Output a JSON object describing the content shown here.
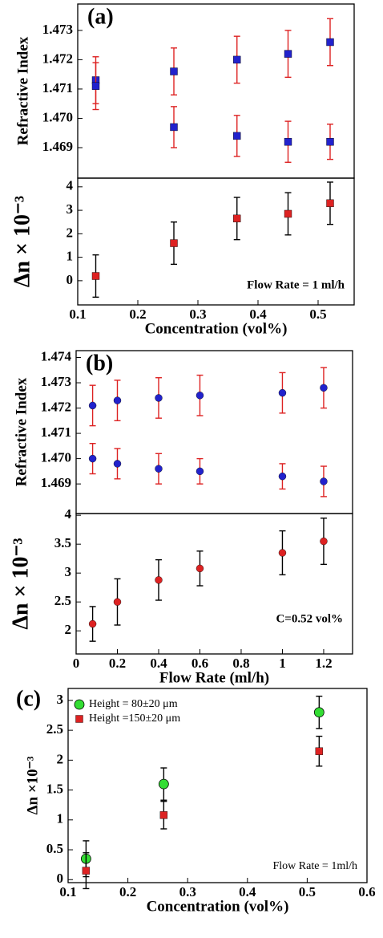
{
  "chart_data": [
    {
      "type": "scatter",
      "panel_label": "(a)",
      "y_label": "Refractive Index",
      "xlim": [
        0.1,
        0.56
      ],
      "ylim": [
        1.46796,
        1.4739
      ],
      "yticks": [
        1.469,
        {
          "value": 1.47,
          "label": "1.470"
        },
        1.471,
        1.472,
        1.473
      ],
      "series": [
        {
          "marker": "square",
          "color": "#2222cc",
          "error_color": "#dd2222",
          "x": [
            0.13,
            0.26,
            0.365,
            0.45,
            0.52
          ],
          "values": [
            1.4713,
            1.4716,
            1.472,
            1.4722,
            1.4726
          ],
          "errors": [
            0.0008,
            0.0008,
            0.0008,
            0.0008,
            0.0008
          ]
        },
        {
          "marker": "square",
          "color": "#2222cc",
          "error_color": "#dd2222",
          "x": [
            0.13,
            0.26,
            0.365,
            0.45,
            0.52
          ],
          "values": [
            1.4711,
            1.4697,
            1.4694,
            1.4692,
            1.4692
          ],
          "errors": [
            0.0008,
            0.0007,
            0.0007,
            0.0007,
            0.0006
          ]
        }
      ]
    },
    {
      "type": "scatter",
      "y_label": "Δn × 10⁻³",
      "x_label": "Concentration (vol%)",
      "annotation": "Flow Rate = 1 ml/h",
      "xlim": [
        0.1,
        0.56
      ],
      "ylim": [
        -1.03,
        4.37
      ],
      "xticks": [
        0.1,
        0.2,
        0.3,
        0.4,
        0.5
      ],
      "yticks": [
        0,
        1,
        2,
        3,
        4
      ],
      "series": [
        {
          "marker": "square",
          "color": "#dd2222",
          "error_color": "#000000",
          "x": [
            0.13,
            0.26,
            0.365,
            0.45,
            0.52
          ],
          "values": [
            0.2,
            1.6,
            2.65,
            2.85,
            3.3
          ],
          "errors": [
            0.9,
            0.9,
            0.9,
            0.9,
            0.9
          ]
        }
      ]
    },
    {
      "type": "scatter",
      "panel_label": "(b)",
      "y_label": "Refractive Index",
      "xlim": [
        0,
        1.34
      ],
      "ylim": [
        1.46783,
        1.47427
      ],
      "yticks": [
        1.469,
        {
          "value": 1.47,
          "label": "1.470"
        },
        1.471,
        1.472,
        1.473,
        1.474
      ],
      "series": [
        {
          "marker": "circle",
          "color": "#2222cc",
          "error_color": "#dd2222",
          "x": [
            0.08,
            0.2,
            0.4,
            0.6,
            1.0,
            1.2
          ],
          "values": [
            1.4721,
            1.4723,
            1.4724,
            1.4725,
            1.4726,
            1.4728
          ],
          "errors": [
            0.0008,
            0.0008,
            0.0008,
            0.0008,
            0.0008,
            0.0008
          ]
        },
        {
          "marker": "circle",
          "color": "#2222cc",
          "error_color": "#dd2222",
          "x": [
            0.08,
            0.2,
            0.4,
            0.6,
            1.0,
            1.2
          ],
          "values": [
            1.47,
            1.4698,
            1.4696,
            1.4695,
            1.4693,
            1.4691
          ],
          "errors": [
            0.0006,
            0.0006,
            0.0006,
            0.0005,
            0.0005,
            0.0006
          ]
        }
      ]
    },
    {
      "type": "scatter",
      "y_label": "Δn × 10⁻³",
      "x_label": "Flow Rate (ml/h)",
      "annotation": "C=0.52 vol%",
      "xlim": [
        0,
        1.34
      ],
      "ylim": [
        1.6,
        4.03
      ],
      "xticks": [
        0,
        0.2,
        0.4,
        0.6,
        0.8,
        1,
        1.2
      ],
      "yticks": [
        2,
        2.5,
        3,
        3.5,
        4
      ],
      "series": [
        {
          "marker": "circle",
          "color": "#dd2222",
          "error_color": "#000000",
          "x": [
            0.08,
            0.2,
            0.4,
            0.6,
            1.0,
            1.2
          ],
          "values": [
            2.12,
            2.5,
            2.88,
            3.08,
            3.35,
            3.55
          ],
          "errors": [
            0.3,
            0.4,
            0.35,
            0.3,
            0.38,
            0.4
          ]
        }
      ]
    },
    {
      "type": "scatter",
      "panel_label": "(c)",
      "y_label": "Δn ×10⁻³",
      "x_label": "Concentration (vol%)",
      "annotation": "Flow Rate = 1ml/h",
      "xlim": [
        0.1,
        0.6
      ],
      "ylim": [
        -0.05,
        3.2
      ],
      "xticks": [
        0.1,
        0.2,
        0.3,
        0.4,
        0.5,
        0.6
      ],
      "yticks": [
        0,
        0.5,
        1,
        1.5,
        2,
        2.5,
        3
      ],
      "series": [
        {
          "name": "Height = 80±20 μm",
          "marker": "circle",
          "color": "#33dd33",
          "error_color": "#000000",
          "x": [
            0.13,
            0.26,
            0.52
          ],
          "values": [
            0.35,
            1.6,
            2.8
          ],
          "errors": [
            0.3,
            0.27,
            0.27
          ]
        },
        {
          "name": "Height =150±20 μm",
          "marker": "square",
          "color": "#dd2222",
          "error_color": "#000000",
          "x": [
            0.13,
            0.26,
            0.52
          ],
          "values": [
            0.15,
            1.08,
            2.15
          ],
          "errors": [
            0.3,
            0.23,
            0.25
          ]
        }
      ]
    }
  ]
}
